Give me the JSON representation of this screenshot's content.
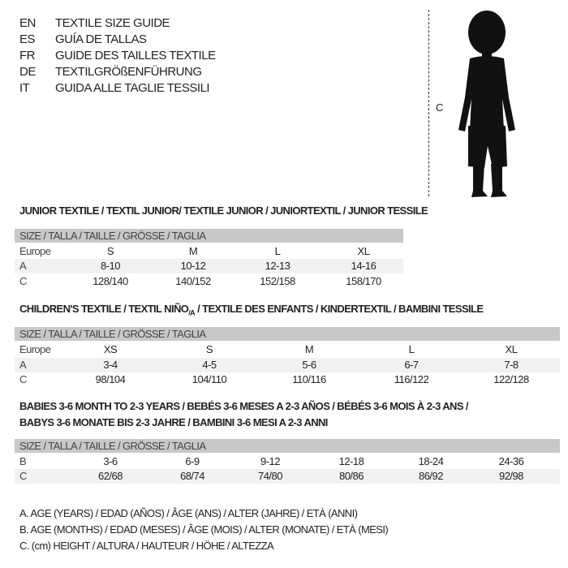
{
  "languages": [
    {
      "code": "EN",
      "title": "TEXTILE SIZE GUIDE"
    },
    {
      "code": "ES",
      "title": "GUÍA DE TALLAS"
    },
    {
      "code": "FR",
      "title": "GUIDE DES TAILLES TEXTILE"
    },
    {
      "code": "DE",
      "title": "TEXTILGRÖßENFÜHRUNG"
    },
    {
      "code": "IT",
      "title": "GUIDA ALLE TAGLIE TESSILI"
    }
  ],
  "figure": {
    "measure_label": "C",
    "icon": "child-silhouette-icon"
  },
  "size_header": "SIZE / TALLA / TAILLE / GRÖSSE / TAGLIA",
  "junior": {
    "title": "JUNIOR TEXTILE / TEXTIL JUNIOR/ TEXTILE JUNIOR / JUNIORTEXTIL / JUNIOR TESSILE",
    "rows": [
      {
        "label": "Europe",
        "values": [
          "S",
          "M",
          "L",
          "XL"
        ]
      },
      {
        "label": "A",
        "values": [
          "8-10",
          "10-12",
          "12-13",
          "14-16"
        ]
      },
      {
        "label": "C",
        "values": [
          "128/140",
          "140/152",
          "152/158",
          "158/170"
        ]
      }
    ]
  },
  "children": {
    "title_a": "CHILDREN'S TEXTILE / TEXTIL NIÑO",
    "title_sub": "/A",
    "title_b": " / TEXTILE DES ENFANTS / KINDERTEXTIL / BAMBINI TESSILE",
    "rows": [
      {
        "label": "Europe",
        "values": [
          "XS",
          "S",
          "M",
          "L",
          "XL"
        ]
      },
      {
        "label": "A",
        "values": [
          "3-4",
          "4-5",
          "5-6",
          "6-7",
          "7-8"
        ]
      },
      {
        "label": "C",
        "values": [
          "98/104",
          "104/110",
          "110/116",
          "116/122",
          "122/128"
        ]
      }
    ]
  },
  "babies": {
    "title_line1": "BABIES 3-6 MONTH TO 2-3 YEARS / BEBÉS 3-6 MESES A 2-3 AÑOS / BÉBÉS 3-6 MOIS À 2-3 ANS /",
    "title_line2": "BABYS 3-6 MONATE BIS 2-3 JAHRE / BAMBINI 3-6 MESI A 2-3 ANNI",
    "rows": [
      {
        "label": "B",
        "values": [
          "3-6",
          "6-9",
          "9-12",
          "12-18",
          "18-24",
          "24-36"
        ]
      },
      {
        "label": "C",
        "values": [
          "62/68",
          "68/74",
          "74/80",
          "80/86",
          "86/92",
          "92/98"
        ]
      }
    ]
  },
  "legend": [
    "A. AGE (YEARS) / EDAD (AÑOS) / ÂGE (ANS) / ALTER (JAHRE) / ETÀ (ANNI)",
    "B. AGE (MONTHS) / EDAD (MESES) / ÂGE (MOIS) / ALTER (MONATE) / ETÀ (MESI)",
    "C. (cm) HEIGHT / ALTURA / HAUTEUR / HÖHE / ALTEZZA"
  ]
}
